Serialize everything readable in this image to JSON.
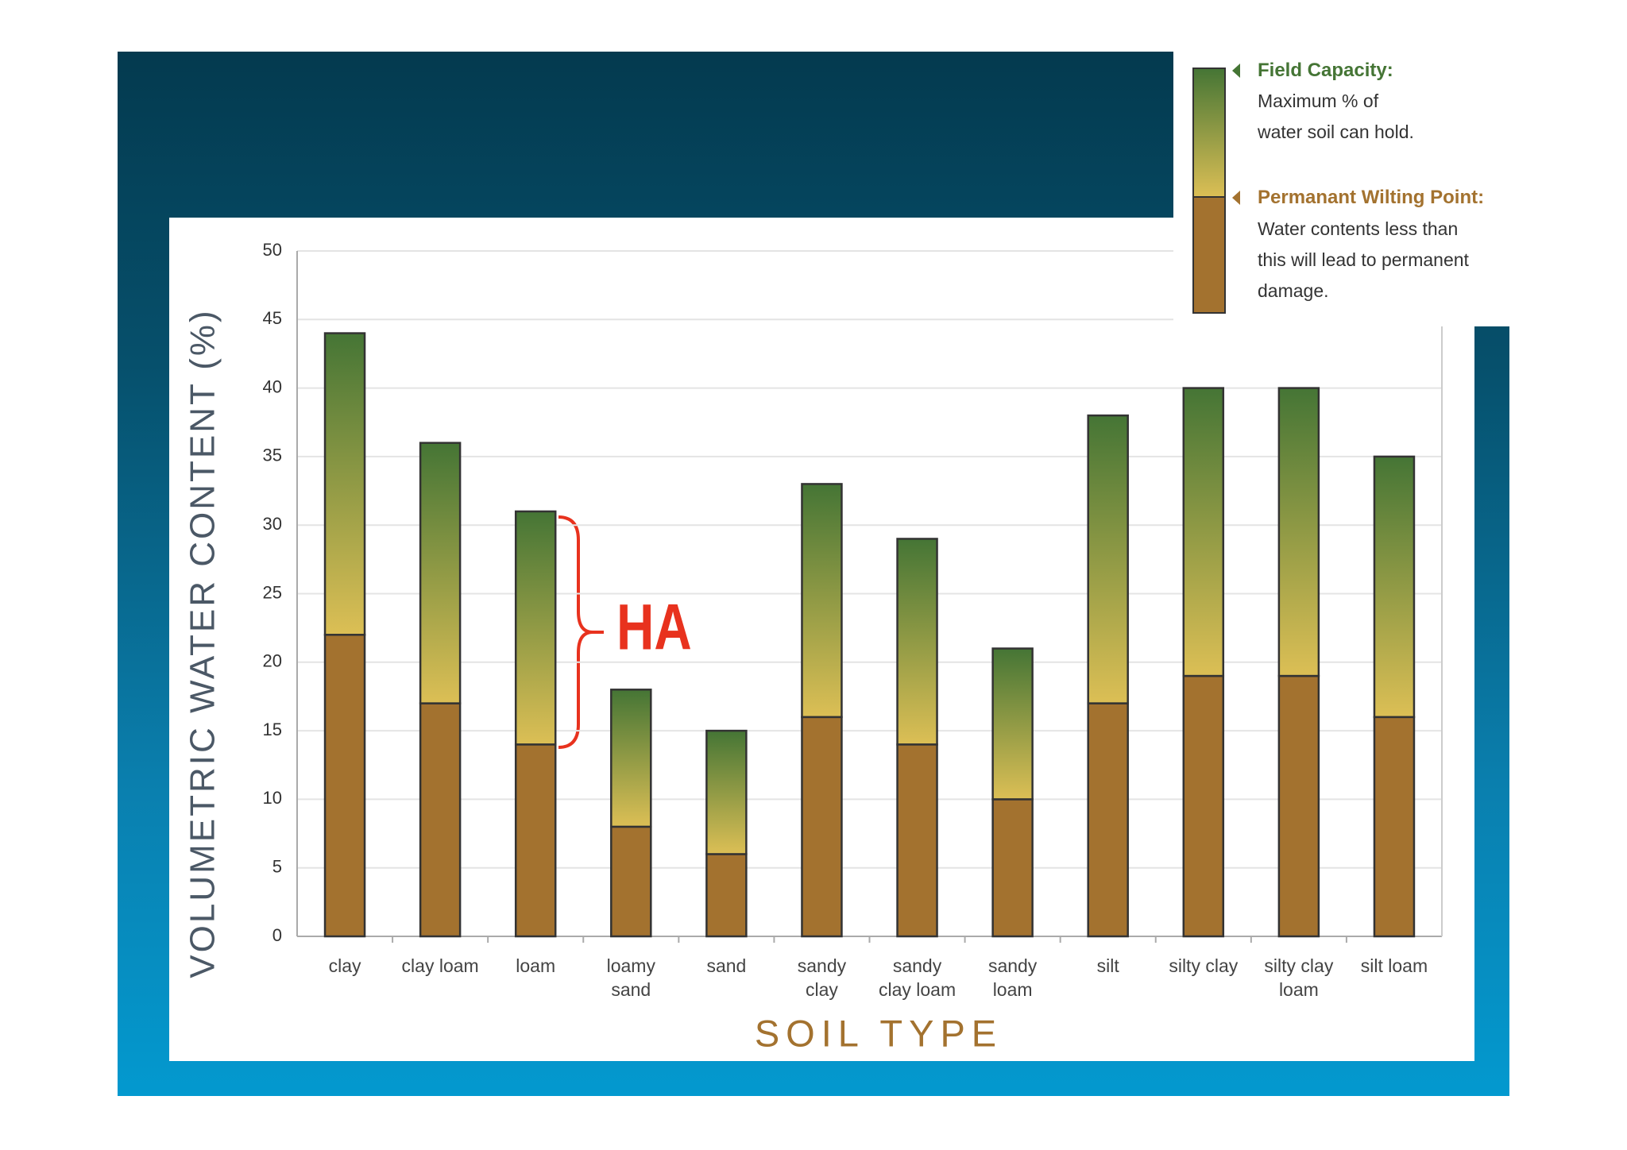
{
  "chart_data": {
    "type": "stacked_bar",
    "ylabel": "VOLUMETRIC WATER CONTENT (%)",
    "xlabel": "SOIL TYPE",
    "categories": [
      "clay",
      "clay loam",
      "loam",
      "loamy\nsand",
      "sand",
      "sandy\nclay",
      "sandy\nclay loam",
      "sandy\nloam",
      "silt",
      "silty clay",
      "silty clay\nloam",
      "silt loam"
    ],
    "series": [
      {
        "name": "Permanant Wilting Point:",
        "description": "Water contents less than\nthis will lead to permanent\ndamage.",
        "color": "#a3722f",
        "values": [
          22,
          17,
          14,
          8,
          6,
          16,
          14,
          10,
          17,
          19,
          19,
          16
        ]
      },
      {
        "name": "Field Capacity:",
        "description": "Maximum % of\nwater soil can hold.",
        "color": "#457535",
        "color_low": "#dcbf55",
        "values": [
          22,
          19,
          17,
          10,
          9,
          17,
          15,
          11,
          21,
          21,
          21,
          19
        ]
      }
    ],
    "ylim": [
      0,
      50
    ],
    "yticks": [
      0,
      5,
      10,
      15,
      20,
      25,
      30,
      35,
      40,
      45,
      50
    ],
    "grid": true,
    "annotations": [
      {
        "text": "HA",
        "color": "#e8321e"
      }
    ]
  }
}
